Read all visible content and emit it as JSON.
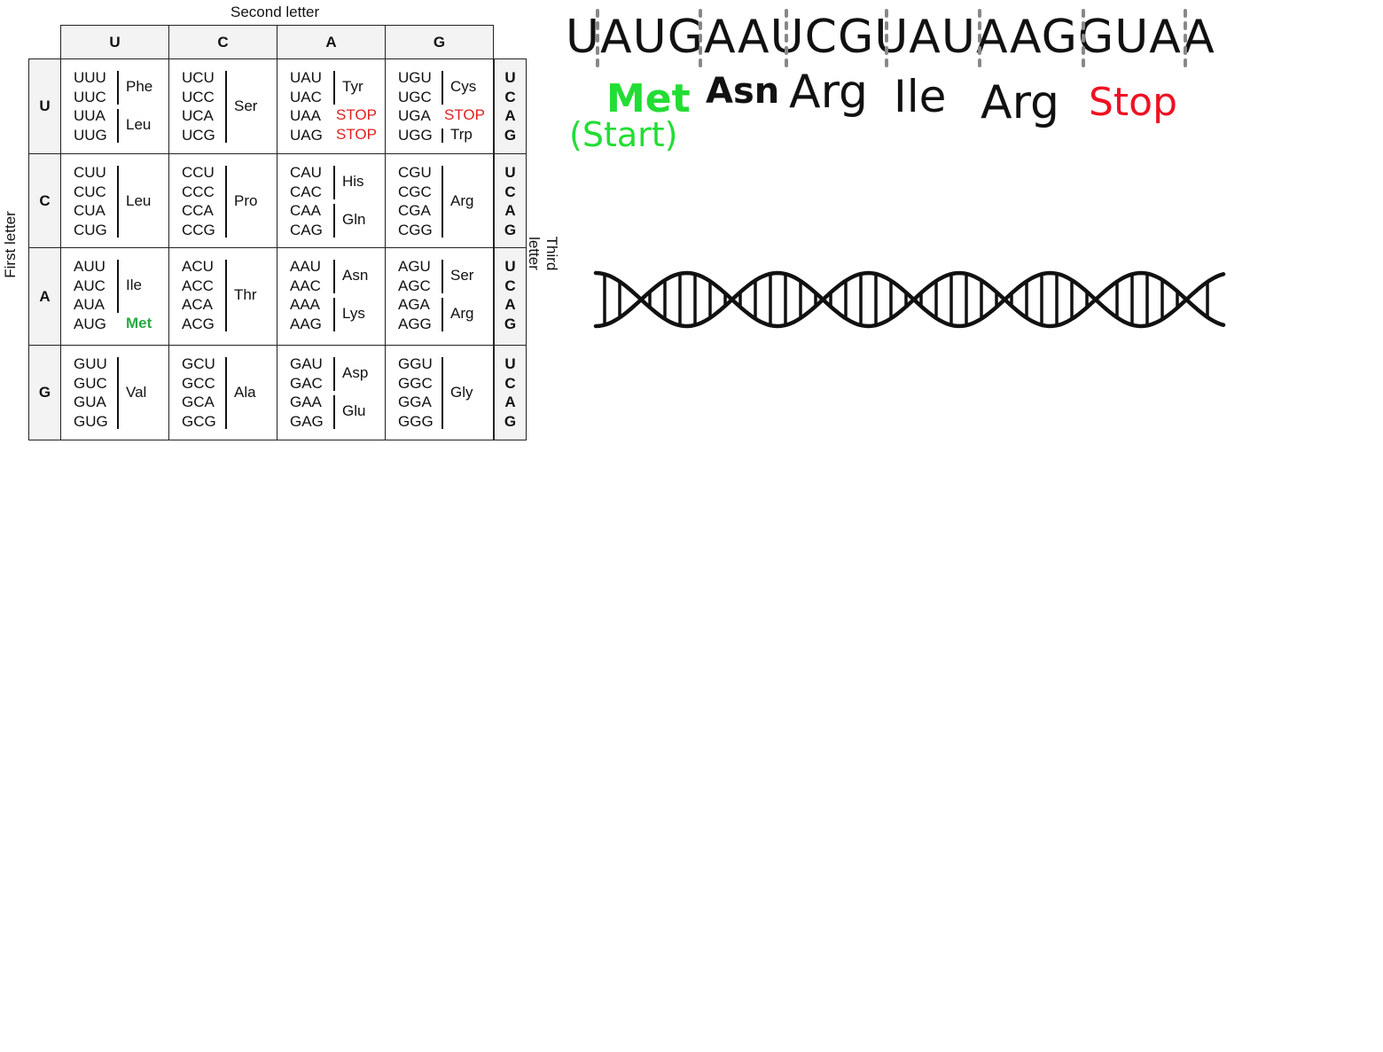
{
  "table": {
    "second_letter_label": "Second letter",
    "first_letter_label": "First letter",
    "third_letter_label": "Third letter",
    "column_headers": [
      "U",
      "C",
      "A",
      "G"
    ],
    "row_headers": [
      "U",
      "C",
      "A",
      "G"
    ],
    "third_letters": [
      "U",
      "C",
      "A",
      "G"
    ],
    "rows": [
      [
        {
          "codons": [
            "UUU",
            "UUC",
            "UUA",
            "UUG"
          ],
          "groups": [
            {
              "label": "Phe",
              "start": 0,
              "end": 1
            },
            {
              "label": "Leu",
              "start": 2,
              "end": 3
            }
          ]
        },
        {
          "codons": [
            "UCU",
            "UCC",
            "UCA",
            "UCG"
          ],
          "groups": [
            {
              "label": "Ser",
              "start": 0,
              "end": 3
            }
          ]
        },
        {
          "codons": [
            "UAU",
            "UAC",
            "UAA",
            "UAG"
          ],
          "groups": [
            {
              "label": "Tyr",
              "start": 0,
              "end": 1
            }
          ],
          "stops": [
            {
              "label": "STOP",
              "row": 2
            },
            {
              "label": "STOP",
              "row": 3
            }
          ]
        },
        {
          "codons": [
            "UGU",
            "UGC",
            "UGA",
            "UGG"
          ],
          "groups": [
            {
              "label": "Cys",
              "start": 0,
              "end": 1
            },
            {
              "label": "Trp",
              "start": 3,
              "end": 3
            }
          ],
          "stops": [
            {
              "label": "STOP",
              "row": 2
            }
          ]
        }
      ],
      [
        {
          "codons": [
            "CUU",
            "CUC",
            "CUA",
            "CUG"
          ],
          "groups": [
            {
              "label": "Leu",
              "start": 0,
              "end": 3
            }
          ]
        },
        {
          "codons": [
            "CCU",
            "CCC",
            "CCA",
            "CCG"
          ],
          "groups": [
            {
              "label": "Pro",
              "start": 0,
              "end": 3
            }
          ]
        },
        {
          "codons": [
            "CAU",
            "CAC",
            "CAA",
            "CAG"
          ],
          "groups": [
            {
              "label": "His",
              "start": 0,
              "end": 1
            },
            {
              "label": "Gln",
              "start": 2,
              "end": 3
            }
          ]
        },
        {
          "codons": [
            "CGU",
            "CGC",
            "CGA",
            "CGG"
          ],
          "groups": [
            {
              "label": "Arg",
              "start": 0,
              "end": 3
            }
          ]
        }
      ],
      [
        {
          "codons": [
            "AUU",
            "AUC",
            "AUA",
            "AUG"
          ],
          "groups": [
            {
              "label": "Ile",
              "start": 0,
              "end": 2
            }
          ],
          "met": {
            "label": "Met",
            "row": 3
          }
        },
        {
          "codons": [
            "ACU",
            "ACC",
            "ACA",
            "ACG"
          ],
          "groups": [
            {
              "label": "Thr",
              "start": 0,
              "end": 3
            }
          ]
        },
        {
          "codons": [
            "AAU",
            "AAC",
            "AAA",
            "AAG"
          ],
          "groups": [
            {
              "label": "Asn",
              "start": 0,
              "end": 1
            },
            {
              "label": "Lys",
              "start": 2,
              "end": 3
            }
          ]
        },
        {
          "codons": [
            "AGU",
            "AGC",
            "AGA",
            "AGG"
          ],
          "groups": [
            {
              "label": "Ser",
              "start": 0,
              "end": 1
            },
            {
              "label": "Arg",
              "start": 2,
              "end": 3
            }
          ]
        }
      ],
      [
        {
          "codons": [
            "GUU",
            "GUC",
            "GUA",
            "GUG"
          ],
          "groups": [
            {
              "label": "Val",
              "start": 0,
              "end": 3
            }
          ]
        },
        {
          "codons": [
            "GCU",
            "GCC",
            "GCA",
            "GCG"
          ],
          "groups": [
            {
              "label": "Ala",
              "start": 0,
              "end": 3
            }
          ]
        },
        {
          "codons": [
            "GAU",
            "GAC",
            "GAA",
            "GAG"
          ],
          "groups": [
            {
              "label": "Asp",
              "start": 0,
              "end": 1
            },
            {
              "label": "Glu",
              "start": 2,
              "end": 3
            }
          ]
        },
        {
          "codons": [
            "GGU",
            "GGC",
            "GGA",
            "GGG"
          ],
          "groups": [
            {
              "label": "Gly",
              "start": 0,
              "end": 3
            }
          ]
        }
      ]
    ]
  },
  "colors": {
    "stop": "#e02020",
    "met": "#2aa845",
    "handwritten_green": "#22dd33",
    "handwritten_red": "#ee1122"
  },
  "mrna": {
    "sequence": "UAUGAAUCGUAUAAGGUAA"
  },
  "protein": {
    "met": "Met",
    "start": "(Start)",
    "asn": "Asn",
    "arg1": "Arg",
    "ile": "Ile",
    "arg2": "Arg",
    "stop": "Stop"
  },
  "dna_helix": {
    "icon": "dna-double-helix-icon"
  }
}
